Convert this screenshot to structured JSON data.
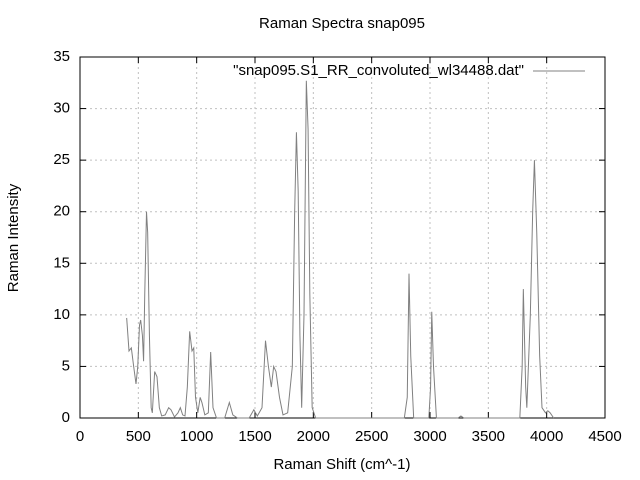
{
  "chart_data": {
    "type": "line",
    "title": "Raman Spectra snap095",
    "x_label": "Raman Shift (cm^-1)",
    "y_label": "Raman Intensity",
    "x": [
      400,
      420,
      440,
      460,
      480,
      495,
      510,
      520,
      535,
      545,
      555,
      570,
      580,
      595,
      610,
      620,
      640,
      660,
      680,
      700,
      730,
      760,
      780,
      810,
      840,
      860,
      880,
      900,
      920,
      940,
      960,
      975,
      990,
      1010,
      1030,
      1045,
      1070,
      1100,
      1120,
      1140,
      1170,
      1240,
      1280,
      1310,
      1350,
      1450,
      1490,
      1520,
      1560,
      1590,
      1615,
      1640,
      1660,
      1680,
      1710,
      1740,
      1780,
      1820,
      1840,
      1855,
      1870,
      1885,
      1900,
      1920,
      1940,
      1955,
      1970,
      1990,
      2020,
      2780,
      2805,
      2820,
      2835,
      2860,
      2990,
      3005,
      3015,
      3030,
      3055,
      3240,
      3265,
      3290,
      3770,
      3790,
      3800,
      3820,
      3830,
      3860,
      3880,
      3895,
      3915,
      3940,
      3960,
      3990,
      4010,
      4030,
      4060
    ],
    "series": [
      {
        "name": "\"snap095.S1_RR_convoluted_wl34488.dat\"",
        "color": "#808080",
        "values": [
          9.7,
          6.5,
          6.8,
          5,
          3.3,
          5,
          9,
          9.5,
          8,
          5.5,
          12,
          20,
          18,
          8,
          1,
          0.5,
          4.5,
          4,
          1,
          0.2,
          0.3,
          1,
          0.8,
          0.1,
          0.5,
          1,
          0.3,
          0.2,
          3,
          8.4,
          6.5,
          6.8,
          2,
          0.5,
          2,
          1.5,
          0.3,
          0.5,
          6.4,
          1,
          0,
          0,
          1.5,
          0.3,
          0,
          0,
          0.8,
          0.2,
          1,
          7.5,
          5,
          3,
          5,
          4.5,
          2,
          0.3,
          0.5,
          5,
          20,
          27.7,
          22,
          8,
          1,
          10,
          32.7,
          28,
          12,
          1,
          0,
          0,
          2,
          14,
          6,
          0,
          0,
          3,
          10.3,
          5,
          0,
          0,
          0.2,
          0,
          0,
          5,
          12.5,
          3,
          1,
          10,
          20,
          25,
          18,
          6,
          1,
          0.5,
          0.7,
          0.5,
          0
        ]
      }
    ],
    "xlim": [
      0,
      4500
    ],
    "xticks": [
      0,
      500,
      1000,
      1500,
      2000,
      2500,
      3000,
      3500,
      4000,
      4500
    ],
    "ylim": [
      0,
      35
    ],
    "yticks": [
      0,
      5,
      10,
      15,
      20,
      25,
      30,
      35
    ],
    "grid": true,
    "legend": "top-right"
  }
}
